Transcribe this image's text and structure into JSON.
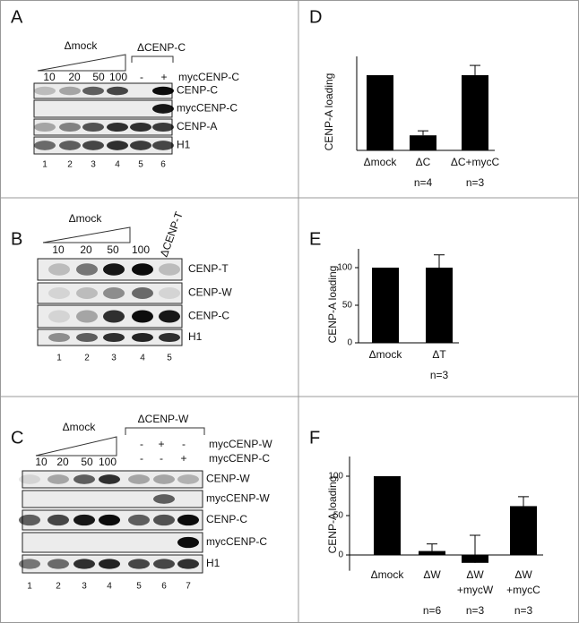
{
  "blots": [
    {
      "panel": "A",
      "groups": [
        "Δmock",
        "ΔCENP-C"
      ],
      "titrations": [
        "10",
        "20",
        "50",
        "100"
      ],
      "treatments": [
        "mycCENP-C"
      ],
      "treatment_signs": [
        [
          "-",
          "+"
        ]
      ],
      "rows": [
        "CENP-C",
        "mycCENP-C",
        "CENP-A",
        "H1"
      ],
      "lanes": [
        "1",
        "2",
        "3",
        "4",
        "5",
        "6"
      ]
    },
    {
      "panel": "B",
      "groups": [
        "Δmock",
        "ΔCENP-T"
      ],
      "titrations": [
        "10",
        "20",
        "50",
        "100"
      ],
      "rows": [
        "CENP-T",
        "CENP-W",
        "CENP-C",
        "H1"
      ],
      "lanes": [
        "1",
        "2",
        "3",
        "4",
        "5"
      ]
    },
    {
      "panel": "C",
      "groups": [
        "Δmock",
        "ΔCENP-W"
      ],
      "titrations": [
        "10",
        "20",
        "50",
        "100"
      ],
      "treatments": [
        "mycCENP-W",
        "mycCENP-C"
      ],
      "treatment_signs": [
        [
          "-",
          "+",
          "-"
        ],
        [
          "-",
          "-",
          "+"
        ]
      ],
      "rows": [
        "CENP-W",
        "mycCENP-W",
        "CENP-C",
        "mycCENP-C",
        "H1"
      ],
      "lanes": [
        "1",
        "2",
        "3",
        "4",
        "5",
        "6",
        "7"
      ]
    }
  ],
  "chart_data": [
    {
      "type": "bar",
      "panel": "D",
      "y_label": "CENP-A loading",
      "categories": [
        [
          "Δmock"
        ],
        [
          "ΔC"
        ],
        [
          "ΔC+mycC"
        ]
      ],
      "n_labels": [
        null,
        "n=4",
        "n=3"
      ],
      "values": [
        100,
        20,
        100
      ],
      "errors": [
        0,
        6,
        13
      ],
      "color": "#000000",
      "ylim": [
        0,
        125
      ]
    },
    {
      "type": "bar",
      "panel": "E",
      "y_label": "CENP-A loading",
      "categories": [
        [
          "Δmock"
        ],
        [
          "ΔT"
        ]
      ],
      "n_labels": [
        null,
        "n=3"
      ],
      "values": [
        100,
        100
      ],
      "errors": [
        0,
        17
      ],
      "color": "#000000",
      "ylim": [
        0,
        125
      ],
      "yticks": [
        0,
        50,
        100
      ]
    },
    {
      "type": "bar",
      "panel": "F",
      "y_label": "CENP-A loading",
      "categories": [
        [
          "Δmock"
        ],
        [
          "ΔW"
        ],
        [
          "ΔW",
          "+mycW"
        ],
        [
          "ΔW",
          "+mycC"
        ]
      ],
      "n_labels": [
        null,
        "n=6",
        "n=3",
        "n=3"
      ],
      "values": [
        100,
        5,
        -10,
        62
      ],
      "errors": [
        0,
        9,
        35,
        12
      ],
      "color": "#000000",
      "ylim": [
        -20,
        125
      ],
      "yticks": [
        0,
        50,
        100
      ]
    }
  ]
}
